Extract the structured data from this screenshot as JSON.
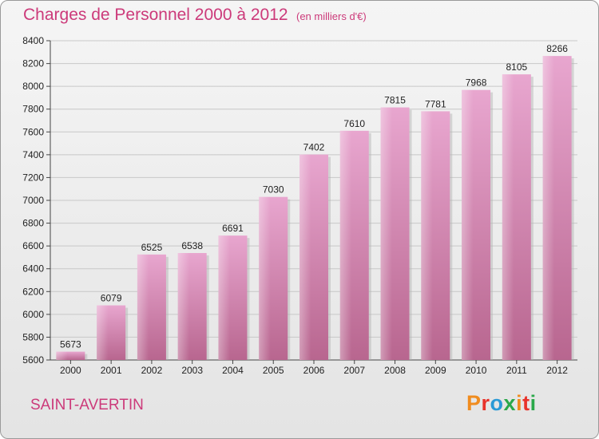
{
  "header": {
    "title": "Charges de Personnel 2000 à 2012",
    "unit": "(en milliers d'€)"
  },
  "footer": {
    "commune": "SAINT-AVERTIN",
    "logo": "Proxiti"
  },
  "colors": {
    "accent": "#cc3a7a",
    "bar": "#d98cb8",
    "logo": [
      "#f08c1e",
      "#e8322a",
      "#2a9ad6",
      "#2aa84a",
      "#f08c1e",
      "#e8322a",
      "#2aa84a"
    ]
  },
  "chart_data": {
    "type": "bar",
    "title": "Charges de Personnel 2000 à 2012",
    "xlabel": "",
    "ylabel": "",
    "categories": [
      "2000",
      "2001",
      "2002",
      "2003",
      "2004",
      "2005",
      "2006",
      "2007",
      "2008",
      "2009",
      "2010",
      "2011",
      "2012"
    ],
    "values": [
      5673,
      6079,
      6525,
      6538,
      6691,
      7030,
      7402,
      7610,
      7815,
      7781,
      7968,
      8105,
      8266
    ],
    "ylim": [
      5600,
      8400
    ],
    "yticks": [
      5600,
      5800,
      6000,
      6200,
      6400,
      6600,
      6800,
      7000,
      7200,
      7400,
      7600,
      7800,
      8000,
      8200,
      8400
    ],
    "grid": true
  }
}
